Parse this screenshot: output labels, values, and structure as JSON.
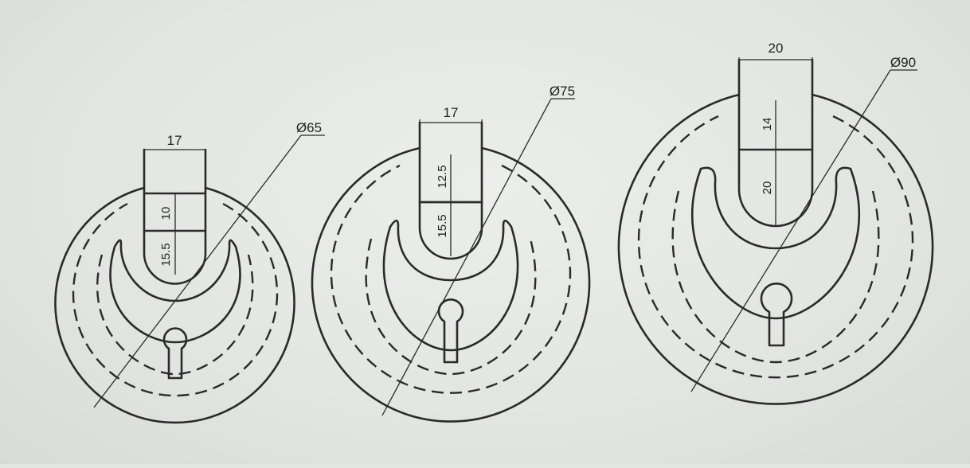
{
  "drawings": [
    {
      "diameter_label": "Ø65",
      "slot_width_label": "17",
      "slot_depth_upper_label": "10",
      "slot_depth_lower_label": "15.5"
    },
    {
      "diameter_label": "Ø75",
      "slot_width_label": "17",
      "slot_depth_upper_label": "12.5",
      "slot_depth_lower_label": "15.5"
    },
    {
      "diameter_label": "Ø90",
      "slot_width_label": "20",
      "slot_depth_upper_label": "14",
      "slot_depth_lower_label": "20"
    }
  ],
  "colors": {
    "background": "#e4e6e3",
    "line": "#2a2a2a"
  }
}
